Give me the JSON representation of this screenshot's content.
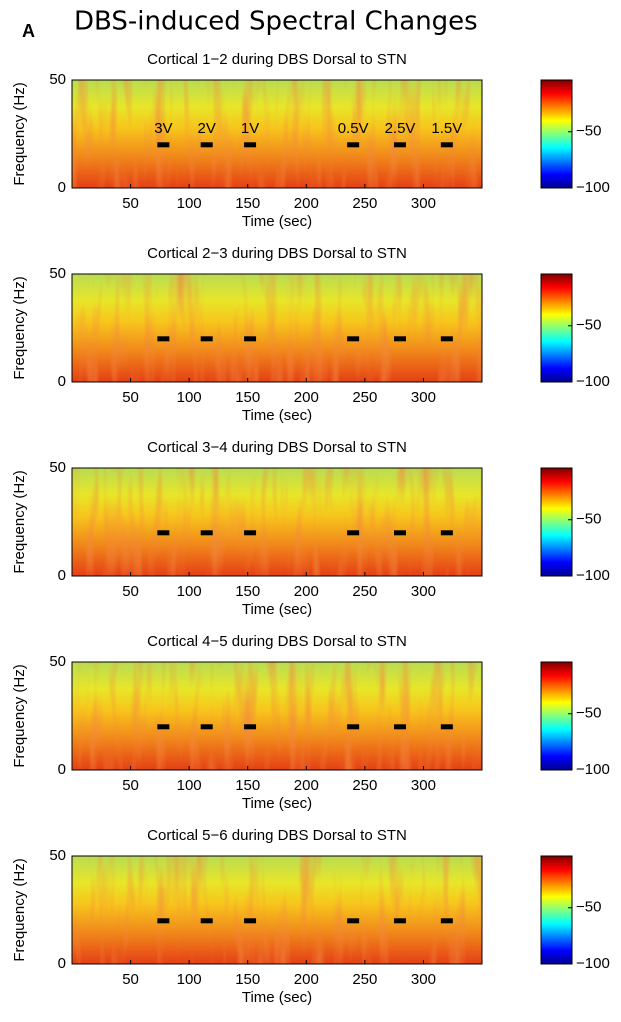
{
  "panel_label": "A",
  "title": "DBS-induced Spectral Changes",
  "chart_data": [
    {
      "type": "spectrogram",
      "title": "Cortical 1−2 during DBS Dorsal to STN",
      "xlabel": "Time (sec)",
      "ylabel": "Frequency (Hz)",
      "xlim": [
        0,
        350
      ],
      "xticks": [
        50,
        100,
        150,
        200,
        250,
        300
      ],
      "ylim": [
        0,
        50
      ],
      "yticks": [
        0,
        50
      ],
      "clim": [
        -100,
        -4
      ],
      "cticks": [
        {
          "value": -50,
          "label": "−50"
        },
        {
          "value": -100,
          "label": "−100"
        }
      ],
      "markers": {
        "x": [
          78,
          115,
          152,
          240,
          280,
          320
        ],
        "y": [
          20,
          20,
          20,
          20,
          20,
          20
        ],
        "labels": [
          "3V",
          "2V",
          "1V",
          "0.5V",
          "2.5V",
          "1.5V"
        ]
      }
    },
    {
      "type": "spectrogram",
      "title": "Cortical 2−3 during DBS Dorsal to STN",
      "xlabel": "Time (sec)",
      "ylabel": "Frequency (Hz)",
      "xlim": [
        0,
        350
      ],
      "xticks": [
        50,
        100,
        150,
        200,
        250,
        300
      ],
      "ylim": [
        0,
        50
      ],
      "yticks": [
        0,
        50
      ],
      "clim": [
        -100,
        -4
      ],
      "cticks": [
        {
          "value": -50,
          "label": "−50"
        },
        {
          "value": -100,
          "label": "−100"
        }
      ],
      "markers": {
        "x": [
          78,
          115,
          152,
          240,
          280,
          320
        ],
        "y": [
          20,
          20,
          20,
          20,
          20,
          20
        ]
      }
    },
    {
      "type": "spectrogram",
      "title": "Cortical 3−4 during DBS Dorsal to STN",
      "xlabel": "Time (sec)",
      "ylabel": "Frequency (Hz)",
      "xlim": [
        0,
        350
      ],
      "xticks": [
        50,
        100,
        150,
        200,
        250,
        300
      ],
      "ylim": [
        0,
        50
      ],
      "yticks": [
        0,
        50
      ],
      "clim": [
        -100,
        -4
      ],
      "cticks": [
        {
          "value": -50,
          "label": "−50"
        },
        {
          "value": -100,
          "label": "−100"
        }
      ],
      "markers": {
        "x": [
          78,
          115,
          152,
          240,
          280,
          320
        ],
        "y": [
          20,
          20,
          20,
          20,
          20,
          20
        ]
      }
    },
    {
      "type": "spectrogram",
      "title": "Cortical 4−5 during DBS Dorsal to STN",
      "xlabel": "Time (sec)",
      "ylabel": "Frequency (Hz)",
      "xlim": [
        0,
        350
      ],
      "xticks": [
        50,
        100,
        150,
        200,
        250,
        300
      ],
      "ylim": [
        0,
        50
      ],
      "yticks": [
        0,
        50
      ],
      "clim": [
        -100,
        -4
      ],
      "cticks": [
        {
          "value": -50,
          "label": "−50"
        },
        {
          "value": -100,
          "label": "−100"
        }
      ],
      "markers": {
        "x": [
          78,
          115,
          152,
          240,
          280,
          320
        ],
        "y": [
          20,
          20,
          20,
          20,
          20,
          20
        ]
      }
    },
    {
      "type": "spectrogram",
      "title": "Cortical 5−6 during DBS Dorsal to STN",
      "xlabel": "Time (sec)",
      "ylabel": "Frequency (Hz)",
      "xlim": [
        0,
        350
      ],
      "xticks": [
        50,
        100,
        150,
        200,
        250,
        300
      ],
      "ylim": [
        0,
        50
      ],
      "yticks": [
        0,
        50
      ],
      "clim": [
        -100,
        -4
      ],
      "cticks": [
        {
          "value": -50,
          "label": "−50"
        },
        {
          "value": -100,
          "label": "−100"
        }
      ],
      "markers": {
        "x": [
          78,
          115,
          152,
          240,
          280,
          320
        ],
        "y": [
          20,
          20,
          20,
          20,
          20,
          20
        ]
      }
    }
  ]
}
